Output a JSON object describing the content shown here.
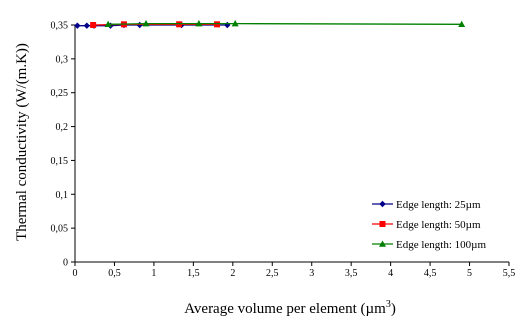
{
  "chart_data": {
    "type": "line",
    "title": "",
    "xlabel": "Average volume per element (µm",
    "xlabel_superscript": "3",
    "xlabel_suffix": ")",
    "ylabel": "Thermal conductivity (W/(m.K))",
    "xlim": [
      0,
      5.5
    ],
    "ylim": [
      0,
      0.35
    ],
    "x_ticks": [
      "0",
      "0,5",
      "1",
      "1,5",
      "2",
      "2,5",
      "3",
      "3,5",
      "4",
      "4,5",
      "5",
      "5,5"
    ],
    "x_tick_values": [
      0,
      0.5,
      1,
      1.5,
      2,
      2.5,
      3,
      3.5,
      4,
      4.5,
      5,
      5.5
    ],
    "y_ticks": [
      "0",
      "0,05",
      "0,1",
      "0,15",
      "0,2",
      "0,25",
      "0,3",
      "0,35"
    ],
    "y_tick_values": [
      0,
      0.05,
      0.1,
      0.15,
      0.2,
      0.25,
      0.3,
      0.35
    ],
    "grid": false,
    "legend_position": "bottom-right",
    "series": [
      {
        "name": "Edge length: 25µm",
        "color": "#00008B",
        "marker": "diamond",
        "x": [
          0.03,
          0.15,
          0.24,
          0.45,
          0.62,
          0.82,
          1.35,
          1.93
        ],
        "y": [
          0.349,
          0.349,
          0.349,
          0.349,
          0.35,
          0.35,
          0.35,
          0.35
        ]
      },
      {
        "name": "Edge length: 50µm",
        "color": "#FF0000",
        "marker": "square",
        "x": [
          0.23,
          0.62,
          1.32,
          1.8
        ],
        "y": [
          0.35,
          0.351,
          0.351,
          0.351
        ]
      },
      {
        "name": "Edge length: 100µm",
        "color": "#008000",
        "marker": "triangle",
        "x": [
          0.42,
          0.9,
          1.57,
          2.03,
          4.9
        ],
        "y": [
          0.351,
          0.352,
          0.352,
          0.352,
          0.351
        ]
      }
    ]
  }
}
